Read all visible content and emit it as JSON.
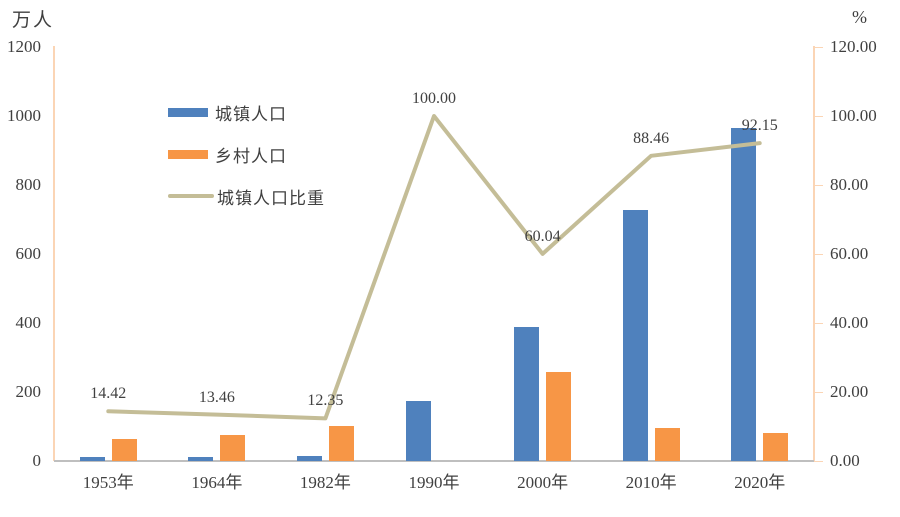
{
  "chart_data": {
    "type": "bar",
    "subtype": "clustered-bar with secondary-axis line",
    "categories": [
      "1953年",
      "1964年",
      "1982年",
      "1990年",
      "2000年",
      "2010年",
      "2020年"
    ],
    "series": [
      {
        "key": "urban-population",
        "name": "城镇人口",
        "type": "bar",
        "axis": "left",
        "color": "#4F81BD",
        "values": [
          10.6,
          11.5,
          14.1,
          175,
          387,
          727,
          965
        ]
      },
      {
        "key": "rural-population",
        "name": "乡村人口",
        "type": "bar",
        "axis": "left",
        "color": "#F79646",
        "values": [
          63,
          74,
          100,
          0,
          258,
          95,
          82
        ]
      },
      {
        "key": "urban-share",
        "name": "城镇人口比重",
        "type": "line",
        "axis": "right",
        "color": "#C4BD97",
        "values": [
          14.42,
          13.46,
          12.35,
          100.0,
          60.04,
          88.46,
          92.15
        ],
        "point_labels": [
          "14.42",
          "13.46",
          "12.35",
          "100.00",
          "60.04",
          "88.46",
          "92.15"
        ]
      }
    ],
    "left_axis": {
      "title": "万人",
      "min": 0,
      "max": 1200,
      "step": 200,
      "tick_labels": [
        "0",
        "200",
        "400",
        "600",
        "800",
        "1000",
        "1200"
      ]
    },
    "right_axis": {
      "title": "%",
      "min": 0,
      "max": 120,
      "step": 20,
      "tick_labels": [
        "0.00",
        "20.00",
        "40.00",
        "60.00",
        "80.00",
        "100.00",
        "120.00"
      ]
    },
    "legend": {
      "position": "inside-top-left",
      "entries": [
        "城镇人口",
        "乡村人口",
        "城镇人口比重"
      ]
    },
    "grid": false,
    "plot_colors": {
      "axis_line": "#FBD5B5",
      "baseline": "#BFBFBF",
      "text": "#404040",
      "background": "#FFFFFF"
    }
  }
}
